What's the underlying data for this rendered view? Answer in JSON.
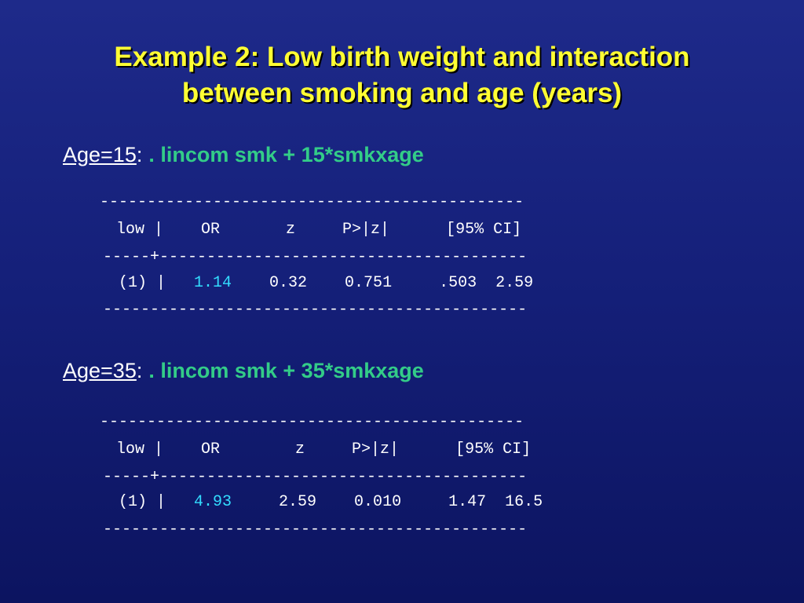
{
  "slide": {
    "title_line1": "Example 2: Low birth weight and interaction",
    "title_line2": "between smoking and age (years)",
    "title_color": "#ffff33",
    "command_color": "#33cc88",
    "highlight_color": "#33ddff"
  },
  "sections": [
    {
      "age_label": "Age=15",
      "colon": ":",
      "command": ". lincom smk + 15*smkxage",
      "output": {
        "rule_top": "---------------------------------------------",
        "header": "low |    OR       z     P>|z|      [95% CI]",
        "rule_mid": "-----+---------------------------------------",
        "row_label": "(1) |   ",
        "or_value": "1.14",
        "row_rest": "    0.32    0.751     .503  2.59",
        "rule_bottom": "---------------------------------------------"
      }
    },
    {
      "age_label": "Age=35",
      "colon": ":",
      "command": ". lincom smk + 35*smkxage",
      "output": {
        "rule_top": "---------------------------------------------",
        "header": "low |    OR        z     P>|z|      [95% CI]",
        "rule_mid": "-----+---------------------------------------",
        "row_label": "(1) |   ",
        "or_value": "4.93",
        "row_rest": "     2.59    0.010     1.47  16.5",
        "rule_bottom": "---------------------------------------------"
      }
    }
  ]
}
